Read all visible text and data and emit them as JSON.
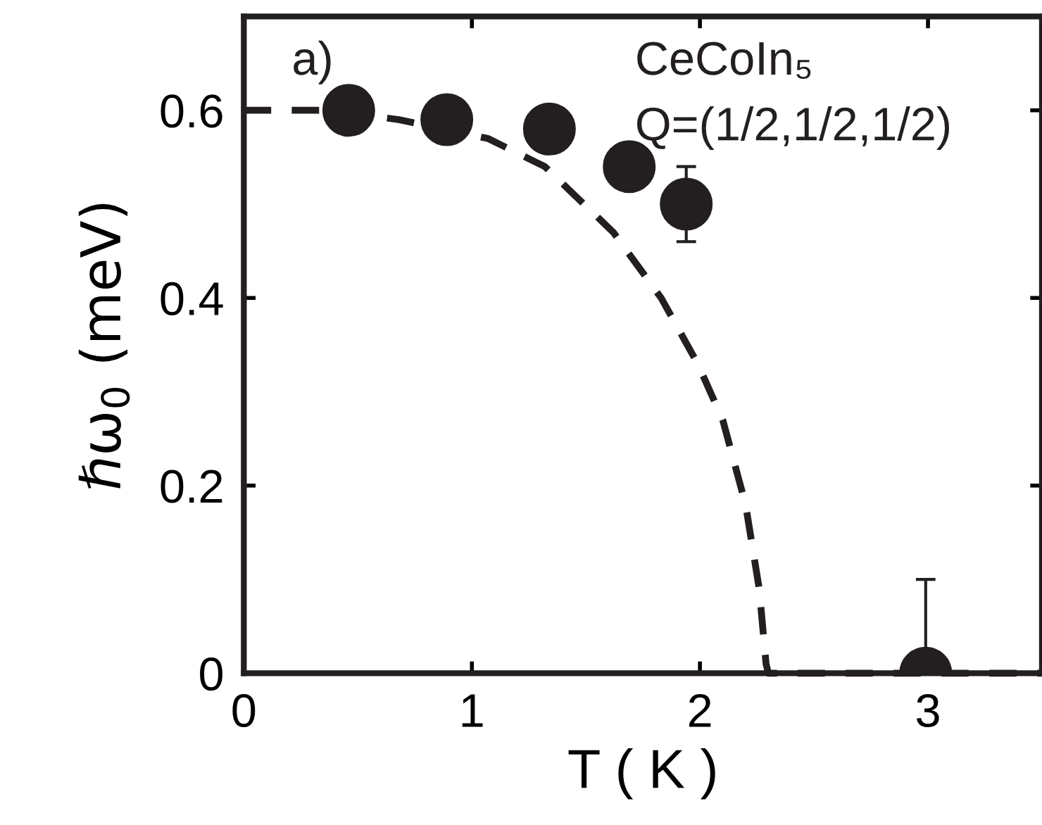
{
  "chart_data": {
    "type": "scatter",
    "xlabel": "T ( K )",
    "ylabel": "ℏω$_{0}$ (meV)",
    "annotations": [
      "a)",
      "CeCoIn₅",
      "Q=(1/2,1/2,1/2)"
    ],
    "series": [
      {
        "color": "#231f20",
        "marker": "circle",
        "x": [
          0.46,
          0.89,
          1.34,
          1.69,
          1.94,
          2.99
        ],
        "values": [
          0.6,
          0.59,
          0.58,
          0.54,
          0.5,
          0
        ],
        "errors": [
          null,
          null,
          null,
          null,
          0.04,
          [
            0,
            0.1
          ]
        ]
      },
      {
        "type": "line",
        "color": "#231f20",
        "line_style": "dashed",
        "marker": "none",
        "x": [
          0,
          0.38,
          0.68,
          1.07,
          1.32,
          1.62,
          1.83,
          1.99,
          2.1,
          2.2,
          2.26,
          2.29,
          2.3,
          3.5
        ],
        "values": [
          0.6,
          0.6,
          0.59,
          0.57,
          0.54,
          0.47,
          0.4,
          0.33,
          0.27,
          0.18,
          0.09,
          0.01,
          0,
          0
        ]
      }
    ],
    "xlim": [
      0,
      3.5
    ],
    "ylim": [
      0,
      0.7
    ],
    "xticks": [
      0,
      1,
      2,
      3
    ],
    "yticks": [
      0,
      0.2,
      0.4,
      0.6
    ],
    "grid": false,
    "legend": false
  }
}
